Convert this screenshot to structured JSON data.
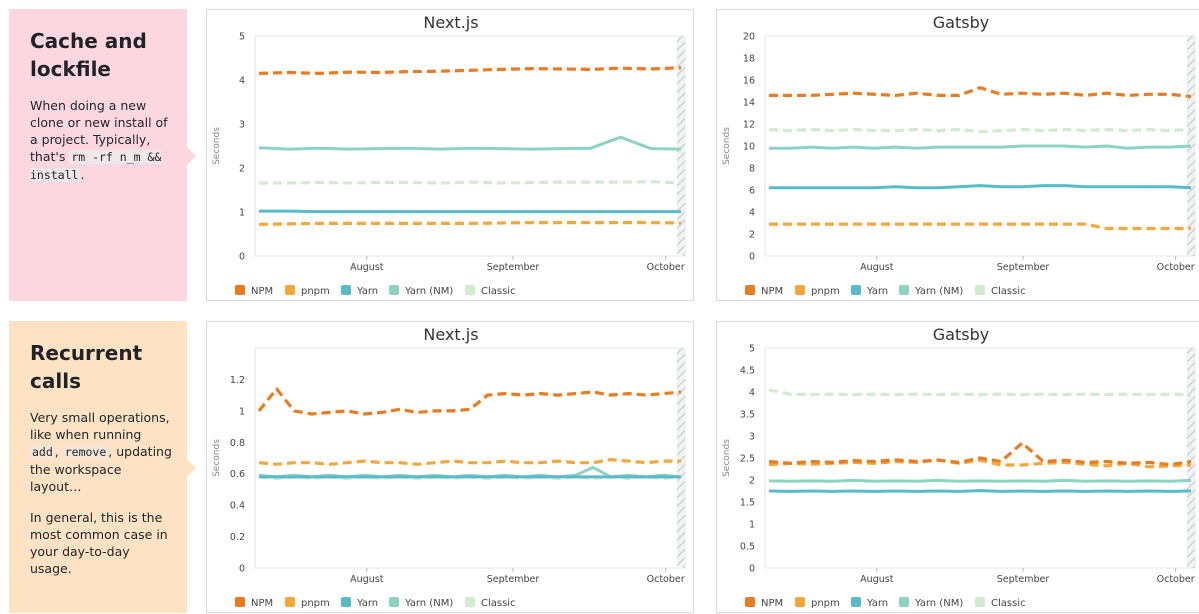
{
  "sections": [
    {
      "title": "Cache and lockfile",
      "paragraphs": [
        [
          {
            "t": "When doing a new clone or new install of a project. Typically, that's "
          },
          {
            "code": "rm -rf n_m && install"
          },
          {
            "t": "."
          }
        ]
      ]
    },
    {
      "title": "Recurrent calls",
      "paragraphs": [
        [
          {
            "t": "Very small operations, like when running "
          },
          {
            "code": "add"
          },
          {
            "t": ", "
          },
          {
            "code": "remove"
          },
          {
            "t": ", updating the workspace layout…"
          }
        ],
        [
          {
            "t": "In general, this is the most common case in your day-to-day usage."
          }
        ]
      ]
    }
  ],
  "colors": {
    "NPM": "#ea7b1f",
    "pnpm": "#f6a73a",
    "Yarn": "#57bcc8",
    "Yarn (NM)": "#8dd3c1",
    "Classic": "#cfeccd"
  },
  "chart_data": [
    {
      "type": "line",
      "title": "Next.js",
      "ylabel": "Seconds",
      "ylim": [
        0,
        5
      ],
      "yticks": [
        0,
        1,
        2,
        3,
        4,
        5
      ],
      "xticks": [
        "August",
        "September",
        "October"
      ],
      "legend": [
        "NPM",
        "pnpm",
        "Yarn",
        "Yarn (NM)",
        "Classic"
      ],
      "legend_position": "bottom",
      "series": [
        {
          "name": "NPM",
          "values": [
            4.15,
            4.17,
            4.15,
            4.18,
            4.17,
            4.19,
            4.2,
            4.22,
            4.24,
            4.26,
            4.25,
            4.24,
            4.27,
            4.25,
            4.28
          ]
        },
        {
          "name": "pnpm",
          "values": [
            0.72,
            0.73,
            0.74,
            0.74,
            0.74,
            0.74,
            0.74,
            0.74,
            0.75,
            0.76,
            0.76,
            0.76,
            0.76,
            0.76,
            0.75
          ]
        },
        {
          "name": "Yarn",
          "values": [
            1.02,
            1.02,
            1.01,
            1.01,
            1.01,
            1.01,
            1.01,
            1.01,
            1.01,
            1.01,
            1.01,
            1.01,
            1.01,
            1.01,
            1.01
          ]
        },
        {
          "name": "Yarn (NM)",
          "values": [
            2.46,
            2.43,
            2.45,
            2.43,
            2.44,
            2.45,
            2.43,
            2.45,
            2.44,
            2.43,
            2.44,
            2.45,
            2.7,
            2.44,
            2.43
          ]
        },
        {
          "name": "Classic",
          "values": [
            1.66,
            1.66,
            1.67,
            1.66,
            1.67,
            1.67,
            1.66,
            1.68,
            1.66,
            1.67,
            1.68,
            1.68,
            1.68,
            1.69,
            1.66
          ]
        }
      ]
    },
    {
      "type": "line",
      "title": "Gatsby",
      "ylabel": "Seconds",
      "ylim": [
        0,
        20
      ],
      "yticks": [
        0,
        2,
        4,
        6,
        8,
        10,
        12,
        14,
        16,
        18,
        20
      ],
      "xticks": [
        "August",
        "September",
        "October"
      ],
      "legend": [
        "NPM",
        "pnpm",
        "Yarn",
        "Yarn (NM)",
        "Classic"
      ],
      "legend_position": "bottom",
      "series": [
        {
          "name": "NPM",
          "values": [
            14.6,
            14.6,
            14.6,
            14.7,
            14.8,
            14.7,
            14.6,
            14.8,
            14.6,
            14.6,
            15.3,
            14.7,
            14.8,
            14.7,
            14.8,
            14.6,
            14.8,
            14.6,
            14.7,
            14.7,
            14.5
          ]
        },
        {
          "name": "pnpm",
          "values": [
            2.9,
            2.9,
            2.9,
            2.9,
            2.9,
            2.9,
            2.9,
            2.9,
            2.9,
            2.9,
            2.9,
            2.9,
            2.9,
            2.9,
            2.9,
            2.9,
            2.5,
            2.5,
            2.5,
            2.5,
            2.5
          ]
        },
        {
          "name": "Yarn",
          "values": [
            6.2,
            6.2,
            6.2,
            6.2,
            6.2,
            6.2,
            6.3,
            6.2,
            6.2,
            6.3,
            6.4,
            6.3,
            6.3,
            6.4,
            6.4,
            6.3,
            6.3,
            6.3,
            6.3,
            6.3,
            6.2
          ]
        },
        {
          "name": "Yarn (NM)",
          "values": [
            9.8,
            9.8,
            9.9,
            9.8,
            9.9,
            9.8,
            9.9,
            9.8,
            9.9,
            9.9,
            9.9,
            9.9,
            10.0,
            10.0,
            10.0,
            9.9,
            10.0,
            9.8,
            9.9,
            9.9,
            10.0
          ]
        },
        {
          "name": "Classic",
          "values": [
            11.5,
            11.4,
            11.5,
            11.4,
            11.5,
            11.4,
            11.4,
            11.5,
            11.4,
            11.5,
            11.3,
            11.4,
            11.5,
            11.4,
            11.5,
            11.4,
            11.5,
            11.4,
            11.5,
            11.4,
            11.5
          ]
        }
      ]
    },
    {
      "type": "line",
      "title": "Next.js",
      "ylabel": "Seconds",
      "ylim": [
        0,
        1.4
      ],
      "yticks": [
        0,
        0.2,
        0.4,
        0.6,
        0.8,
        1,
        1.2
      ],
      "xticks": [
        "August",
        "September",
        "October"
      ],
      "legend": [
        "NPM",
        "pnpm",
        "Yarn",
        "Yarn (NM)",
        "Classic"
      ],
      "legend_position": "bottom",
      "series": [
        {
          "name": "NPM",
          "values": [
            1.0,
            1.14,
            1.0,
            0.98,
            0.99,
            1.0,
            0.98,
            0.99,
            1.01,
            0.99,
            1.0,
            1.0,
            1.01,
            1.1,
            1.11,
            1.1,
            1.11,
            1.1,
            1.11,
            1.12,
            1.1,
            1.11,
            1.1,
            1.11,
            1.12
          ]
        },
        {
          "name": "pnpm",
          "values": [
            0.67,
            0.66,
            0.67,
            0.67,
            0.66,
            0.67,
            0.68,
            0.67,
            0.67,
            0.66,
            0.67,
            0.68,
            0.67,
            0.67,
            0.68,
            0.67,
            0.67,
            0.68,
            0.67,
            0.67,
            0.69,
            0.68,
            0.67,
            0.68,
            0.68
          ]
        },
        {
          "name": "Yarn",
          "values": [
            0.58,
            0.58,
            0.58,
            0.58,
            0.58,
            0.58,
            0.58,
            0.58,
            0.58,
            0.58,
            0.58,
            0.58,
            0.58,
            0.58,
            0.58,
            0.58,
            0.58,
            0.58,
            0.58,
            0.58,
            0.58,
            0.58,
            0.58,
            0.58,
            0.58
          ]
        },
        {
          "name": "Yarn (NM)",
          "values": [
            0.59,
            0.58,
            0.59,
            0.58,
            0.59,
            0.58,
            0.59,
            0.58,
            0.59,
            0.58,
            0.59,
            0.58,
            0.59,
            0.58,
            0.59,
            0.58,
            0.59,
            0.58,
            0.59,
            0.64,
            0.58,
            0.59,
            0.58,
            0.59,
            0.58
          ]
        },
        {
          "name": "Classic",
          "values": [
            0.58,
            0.57,
            0.58,
            0.57,
            0.58,
            0.57,
            0.58,
            0.57,
            0.58,
            0.57,
            0.58,
            0.57,
            0.58,
            0.57,
            0.58,
            0.57,
            0.58,
            0.57,
            0.58,
            0.57,
            0.58,
            0.57,
            0.58,
            0.57,
            0.58
          ]
        }
      ]
    },
    {
      "type": "line",
      "title": "Gatsby",
      "ylabel": "Seconds",
      "ylim": [
        0,
        5
      ],
      "yticks": [
        0,
        0.5,
        1,
        1.5,
        2,
        2.5,
        3,
        3.5,
        4,
        4.5,
        5
      ],
      "xticks": [
        "August",
        "September",
        "October"
      ],
      "legend": [
        "NPM",
        "pnpm",
        "Yarn",
        "Yarn (NM)",
        "Classic"
      ],
      "legend_position": "bottom",
      "series": [
        {
          "name": "NPM",
          "values": [
            2.42,
            2.38,
            2.42,
            2.4,
            2.44,
            2.42,
            2.46,
            2.42,
            2.45,
            2.4,
            2.5,
            2.42,
            2.84,
            2.42,
            2.45,
            2.4,
            2.42,
            2.38,
            2.4,
            2.35,
            2.42
          ]
        },
        {
          "name": "pnpm",
          "values": [
            2.35,
            2.38,
            2.36,
            2.38,
            2.4,
            2.38,
            2.42,
            2.4,
            2.46,
            2.38,
            2.45,
            2.34,
            2.34,
            2.38,
            2.4,
            2.36,
            2.32,
            2.38,
            2.3,
            2.32,
            2.34
          ]
        },
        {
          "name": "Yarn",
          "values": [
            1.75,
            1.74,
            1.75,
            1.74,
            1.75,
            1.74,
            1.75,
            1.74,
            1.75,
            1.74,
            1.76,
            1.74,
            1.75,
            1.74,
            1.75,
            1.74,
            1.75,
            1.74,
            1.75,
            1.74,
            1.75
          ]
        },
        {
          "name": "Yarn (NM)",
          "values": [
            1.98,
            1.97,
            1.98,
            1.97,
            1.99,
            1.97,
            1.98,
            1.97,
            1.99,
            1.97,
            1.98,
            1.97,
            1.98,
            1.97,
            1.99,
            1.97,
            1.98,
            1.97,
            1.98,
            1.97,
            1.99
          ]
        },
        {
          "name": "Classic",
          "values": [
            4.05,
            3.95,
            3.94,
            3.95,
            3.94,
            3.95,
            3.94,
            3.95,
            3.94,
            3.95,
            3.94,
            3.95,
            3.94,
            3.95,
            3.94,
            3.95,
            3.94,
            3.95,
            3.94,
            3.95,
            3.94
          ]
        }
      ]
    }
  ]
}
